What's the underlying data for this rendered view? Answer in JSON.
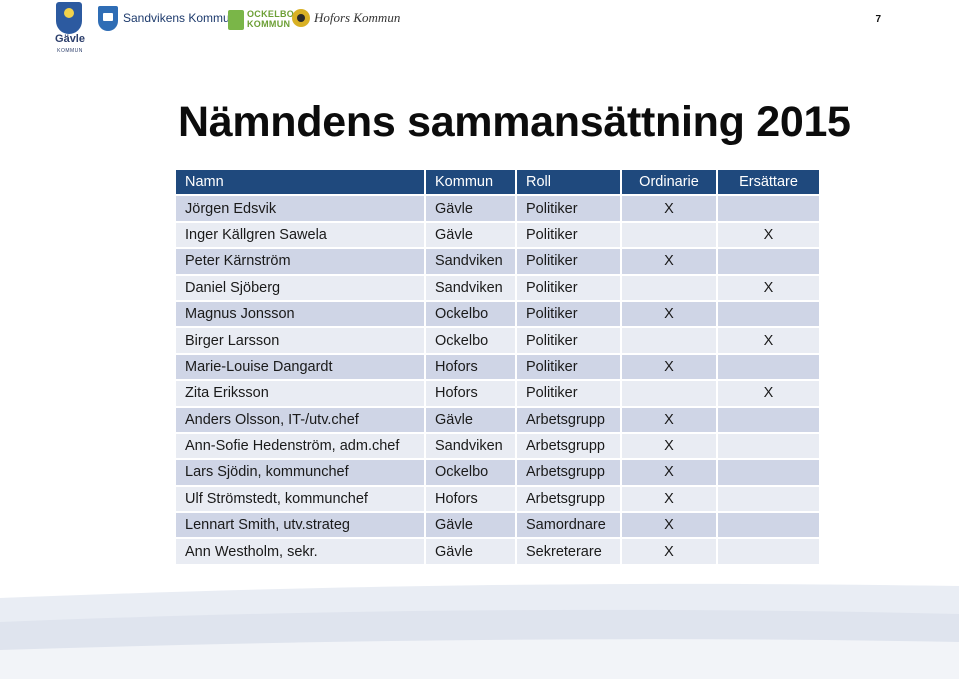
{
  "header": {
    "page_number": "7",
    "logos": [
      {
        "name": "Gävle",
        "sub": "KOMMUN"
      },
      {
        "name": "Sandvikens Kommun"
      },
      {
        "name": "OCKELBO KOMMUN",
        "line1": "OCKELBO",
        "line2": "KOMMUN"
      },
      {
        "name": "Hofors Kommun"
      }
    ]
  },
  "title": "Nämndens sammansättning 2015",
  "table": {
    "headers": [
      "Namn",
      "Kommun",
      "Roll",
      "Ordinarie",
      "Ersättare"
    ],
    "rows": [
      [
        "Jörgen Edsvik",
        "Gävle",
        "Politiker",
        "X",
        ""
      ],
      [
        "Inger Källgren Sawela",
        "Gävle",
        "Politiker",
        "",
        "X"
      ],
      [
        "Peter Kärnström",
        "Sandviken",
        "Politiker",
        "X",
        ""
      ],
      [
        "Daniel Sjöberg",
        "Sandviken",
        "Politiker",
        "",
        "X"
      ],
      [
        "Magnus Jonsson",
        "Ockelbo",
        "Politiker",
        "X",
        ""
      ],
      [
        "Birger Larsson",
        "Ockelbo",
        "Politiker",
        "",
        "X"
      ],
      [
        "Marie-Louise Dangardt",
        "Hofors",
        "Politiker",
        "X",
        ""
      ],
      [
        "Zita Eriksson",
        "Hofors",
        "Politiker",
        "",
        "X"
      ],
      [
        "Anders Olsson, IT-/utv.chef",
        "Gävle",
        "Arbetsgrupp",
        "X",
        ""
      ],
      [
        "Ann-Sofie Hedenström, adm.chef",
        "Sandviken",
        "Arbetsgrupp",
        "X",
        ""
      ],
      [
        "Lars Sjödin, kommunchef",
        "Ockelbo",
        "Arbetsgrupp",
        "X",
        ""
      ],
      [
        "Ulf Strömstedt, kommunchef",
        "Hofors",
        "Arbetsgrupp",
        "X",
        ""
      ],
      [
        "Lennart Smith, utv.strateg",
        "Gävle",
        "Samordnare",
        "X",
        ""
      ],
      [
        "Ann Westholm, sekr.",
        "Gävle",
        "Sekreterare",
        "X",
        ""
      ]
    ]
  },
  "colors": {
    "header_bg": "#1f497d",
    "row_dark": "#cfd5e6",
    "row_light": "#e9ecf3",
    "wave": "#dfe4ee"
  }
}
